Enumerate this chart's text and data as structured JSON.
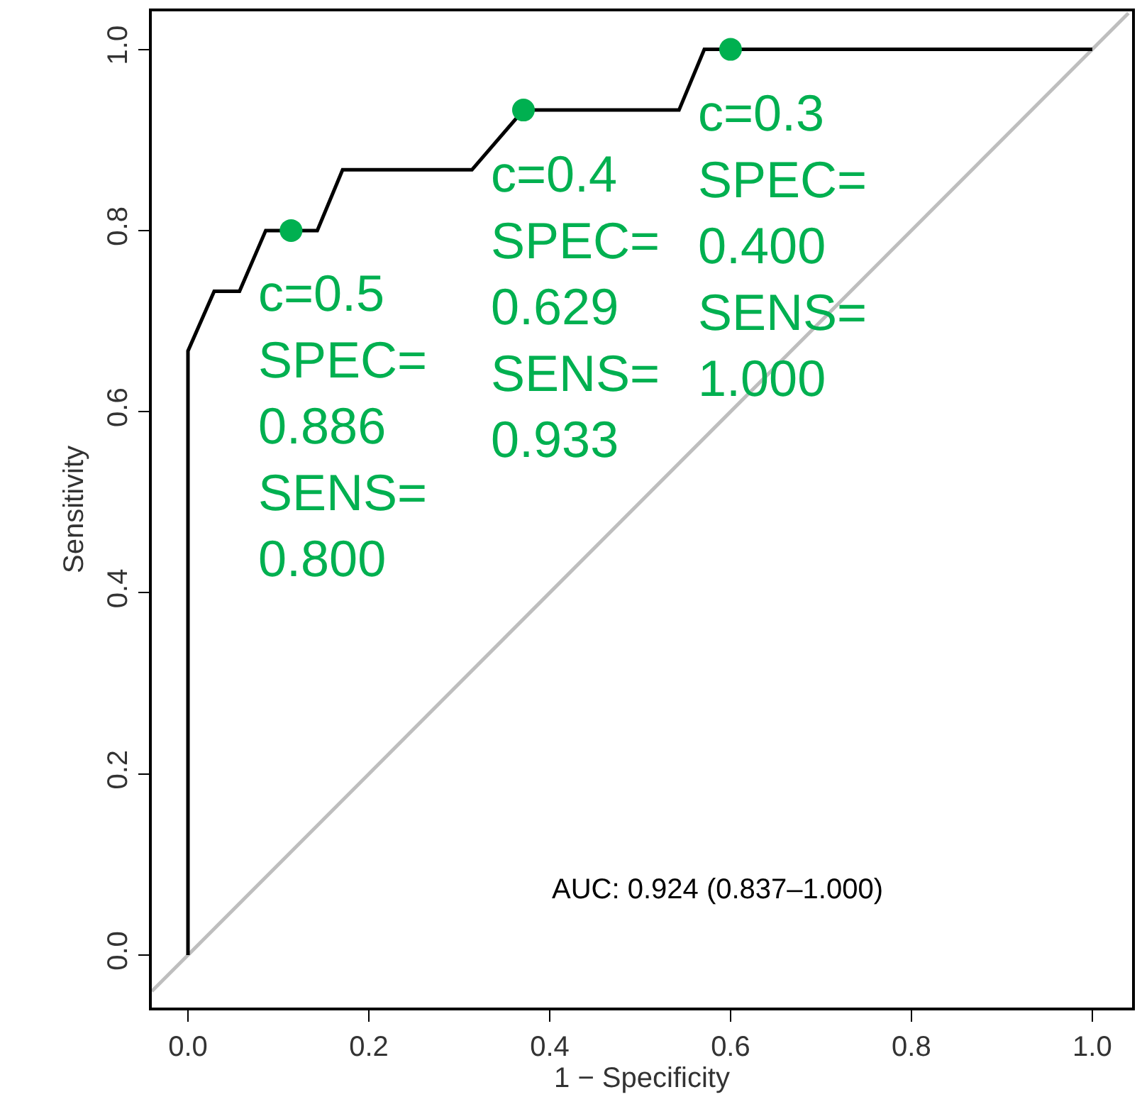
{
  "chart_data": {
    "type": "line",
    "xlabel": "1 − Specificity",
    "ylabel": "Sensitivity",
    "xlim": [
      -0.04,
      1.044
    ],
    "ylim": [
      -0.058,
      1.042
    ],
    "xticks": [
      {
        "value": 0,
        "label": "0.0"
      },
      {
        "value": 0.2,
        "label": "0.2"
      },
      {
        "value": 0.4,
        "label": "0.4"
      },
      {
        "value": 0.6,
        "label": "0.6"
      },
      {
        "value": 0.8,
        "label": "0.8"
      },
      {
        "value": 1,
        "label": "1.0"
      }
    ],
    "yticks": [
      {
        "value": 0,
        "label": "0.0"
      },
      {
        "value": 0.2,
        "label": "0.2"
      },
      {
        "value": 0.4,
        "label": "0.4"
      },
      {
        "value": 0.6,
        "label": "0.6"
      },
      {
        "value": 0.8,
        "label": "0.8"
      },
      {
        "value": 1,
        "label": "1.0"
      }
    ],
    "marker": "none",
    "line_style": "solid",
    "series": [
      {
        "color": "#bebebe",
        "x": [
          -0.04,
          1.04
        ],
        "values": [
          -0.04,
          1.04
        ]
      },
      {
        "color": "#000000",
        "x": [
          0,
          0,
          0.029,
          0.057,
          0.086,
          0.143,
          0.171,
          0.314,
          0.371,
          0.543,
          0.571,
          1
        ],
        "values": [
          0,
          0.667,
          0.733,
          0.733,
          0.8,
          0.8,
          0.867,
          0.867,
          0.933,
          0.933,
          1,
          1
        ]
      },
      {
        "type": "scatter",
        "marker": "circle",
        "color": "#00b050",
        "x": [
          0.114,
          0.371,
          0.6
        ],
        "values": [
          0.8,
          0.933,
          1.0
        ]
      }
    ],
    "annotations": [
      {
        "text": "c=0.5\nSPEC=\n0.886\nSENS=\n0.800",
        "x": 0.114,
        "y": 0.8
      },
      {
        "text": "c=0.4\nSPEC=\n0.629\nSENS=\n0.933",
        "x": 0.371,
        "y": 0.933
      },
      {
        "text": "c=0.3\nSPEC=\n0.400\nSENS=\n1.000",
        "x": 0.6,
        "y": 1.0
      },
      "AUC: 0.924 (0.837–1.000)"
    ]
  }
}
